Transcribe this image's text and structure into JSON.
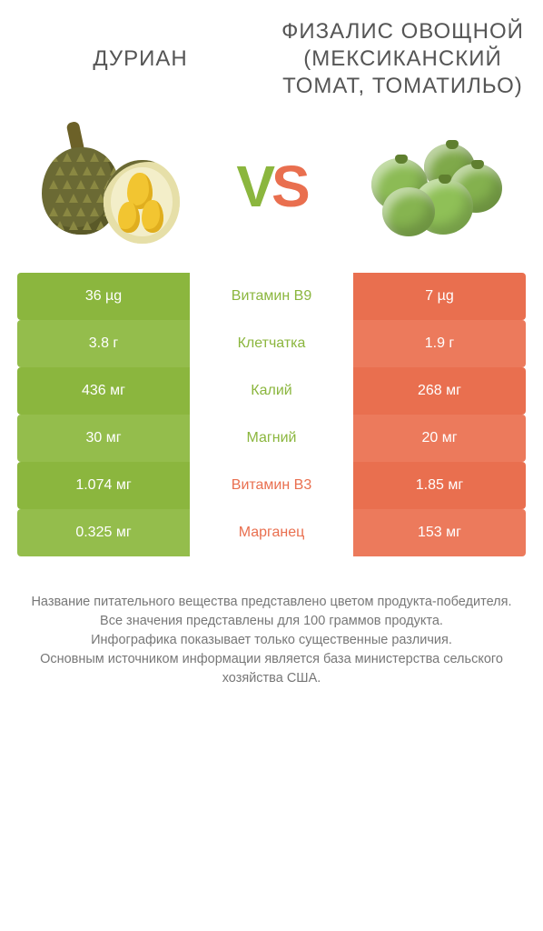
{
  "colors": {
    "left_bg": "#8bb63e",
    "left_bg_alt": "#94bd4c",
    "right_bg": "#e96f4f",
    "right_bg_alt": "#ec7a5c",
    "mid_left": "#8bb63e",
    "mid_right": "#e96f4f",
    "title": "#555555",
    "footer": "#777777"
  },
  "titles": {
    "left": "ДУРИАН",
    "right": "ФИЗАЛИС ОВОЩНОЙ (МЕКСИКАНСКИЙ ТОМАТ, ТОМАТИЛЬО)"
  },
  "vs": {
    "v": "V",
    "s": "S"
  },
  "rows": [
    {
      "left": "36 µg",
      "mid": "Витамин B9",
      "right": "7 µg",
      "winner": "left"
    },
    {
      "left": "3.8 г",
      "mid": "Клетчатка",
      "right": "1.9 г",
      "winner": "left"
    },
    {
      "left": "436 мг",
      "mid": "Калий",
      "right": "268 мг",
      "winner": "left"
    },
    {
      "left": "30 мг",
      "mid": "Магний",
      "right": "20 мг",
      "winner": "left"
    },
    {
      "left": "1.074 мг",
      "mid": "Витамин B3",
      "right": "1.85 мг",
      "winner": "right"
    },
    {
      "left": "0.325 мг",
      "mid": "Марганец",
      "right": "153 мг",
      "winner": "right"
    }
  ],
  "footer": {
    "l1": "Название питательного вещества представлено цветом продукта-победителя.",
    "l2": "Все значения представлены для 100 граммов продукта.",
    "l3": "Инфографика показывает только существенные различия.",
    "l4": "Основным источником информации является база министерства сельского хозяйства США."
  }
}
